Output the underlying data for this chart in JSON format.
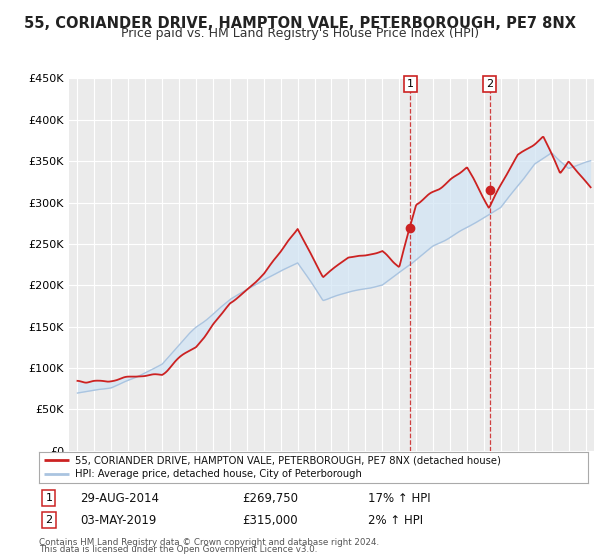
{
  "title": "55, CORIANDER DRIVE, HAMPTON VALE, PETERBOROUGH, PE7 8NX",
  "subtitle": "Price paid vs. HM Land Registry's House Price Index (HPI)",
  "title_fontsize": 10.5,
  "subtitle_fontsize": 9,
  "ylim": [
    0,
    450000
  ],
  "yticks": [
    0,
    50000,
    100000,
    150000,
    200000,
    250000,
    300000,
    350000,
    400000,
    450000
  ],
  "xlim_start": 1994.5,
  "xlim_end": 2025.5,
  "hpi_color": "#aac4e0",
  "hpi_fill_color": "#d0e4f5",
  "price_color": "#cc2222",
  "marker1_date": 2014.66,
  "marker1_price": 269750,
  "marker2_date": 2019.33,
  "marker2_price": 315000,
  "legend_line1": "55, CORIANDER DRIVE, HAMPTON VALE, PETERBOROUGH, PE7 8NX (detached house)",
  "legend_line2": "HPI: Average price, detached house, City of Peterborough",
  "annotation1_date": "29-AUG-2014",
  "annotation1_price": "£269,750",
  "annotation1_hpi": "17% ↑ HPI",
  "annotation2_date": "03-MAY-2019",
  "annotation2_price": "£315,000",
  "annotation2_hpi": "2% ↑ HPI",
  "footer1": "Contains HM Land Registry data © Crown copyright and database right 2024.",
  "footer2": "This data is licensed under the Open Government Licence v3.0.",
  "bg_color": "#ebebeb",
  "grid_color": "#ffffff"
}
